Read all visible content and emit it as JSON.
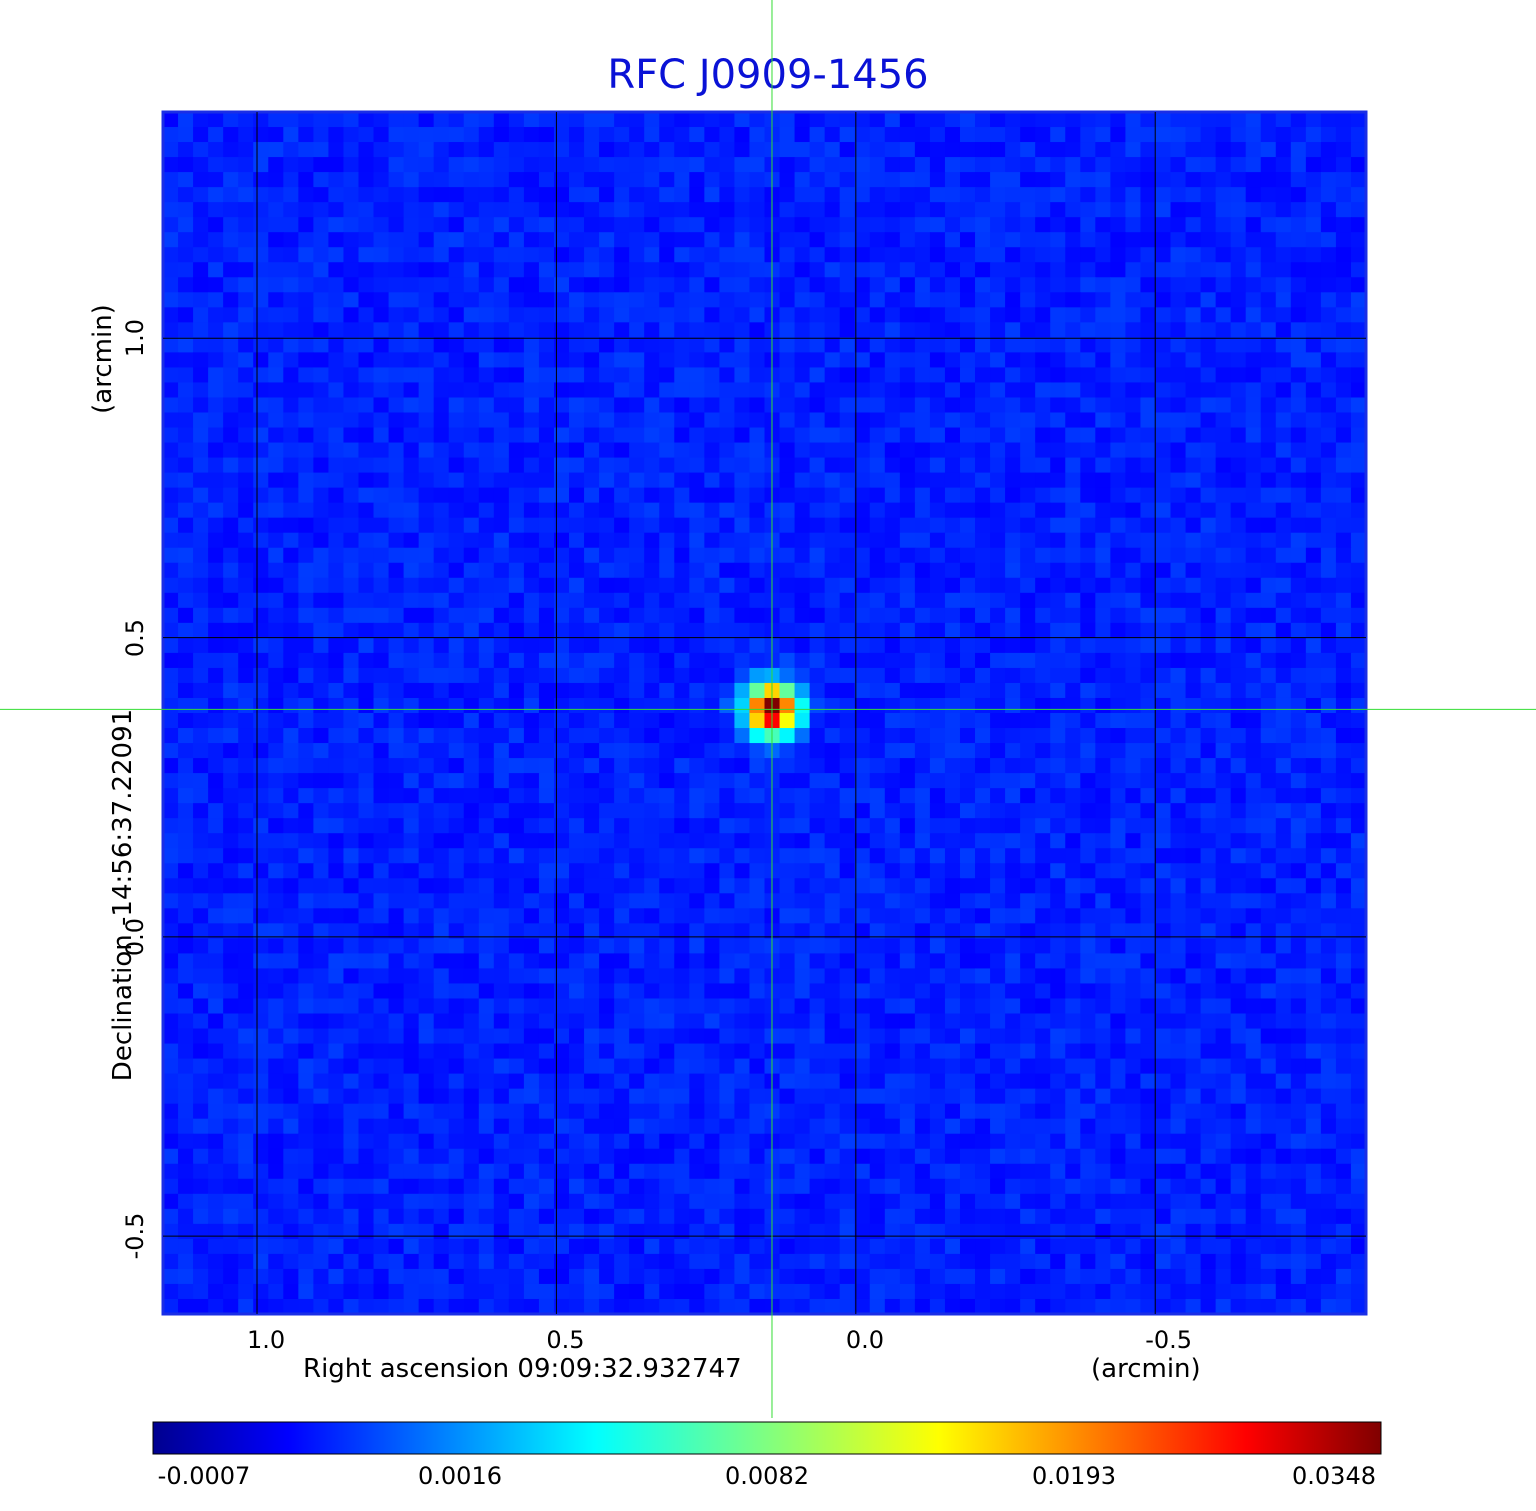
{
  "chart_data": {
    "type": "heatmap",
    "title": "RFC J0909-1456",
    "xlabel": "Right ascension  09:09:32.932747",
    "xunit": "(arcmin)",
    "ylabel": "Declination  -14:56:37.22091",
    "yunit": "(arcmin)",
    "x_ticks": [
      "1.0",
      "0.5",
      "0.0",
      "-0.5"
    ],
    "x_tick_values": [
      1.0,
      0.5,
      0.0,
      -0.5
    ],
    "y_ticks": [
      "1.0",
      "0.5",
      "0.0",
      "-0.5"
    ],
    "y_tick_values": [
      1.0,
      0.5,
      0.0,
      -0.5
    ],
    "xlim": [
      1.157,
      -0.852
    ],
    "ylim": [
      -0.63,
      1.378
    ],
    "grid": true,
    "crosshair": {
      "x": 0.14,
      "y": 0.38,
      "color": "#33dd33"
    },
    "peak": {
      "x": 0.14,
      "y": 0.38,
      "value": 0.0348
    },
    "colormap": "jet",
    "colorbar_ticks": [
      "-0.0007",
      "0.0016",
      "0.0082",
      "0.0193",
      "0.0348"
    ],
    "colorbar_values": [
      -0.0007,
      0.0016,
      0.0082,
      0.0193,
      0.0348
    ],
    "background_level": -0.0003
  }
}
